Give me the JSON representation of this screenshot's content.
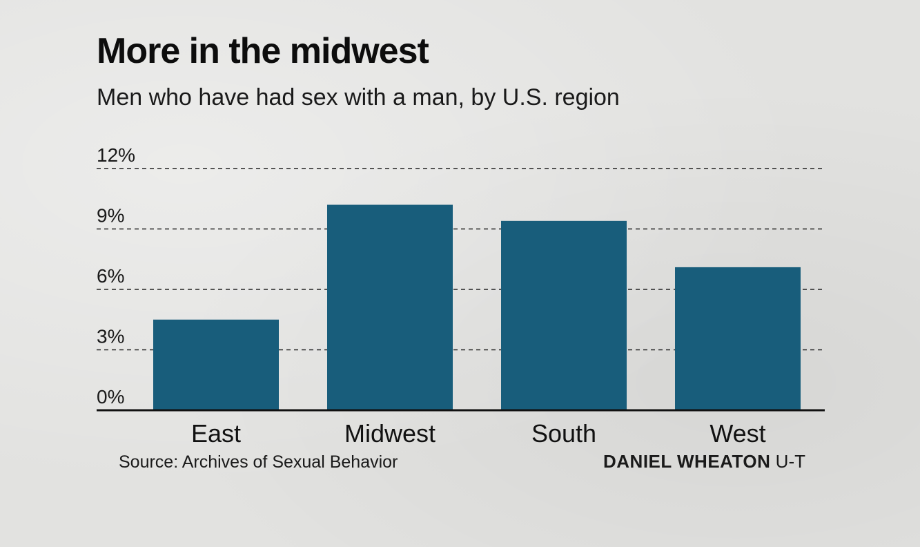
{
  "title": "More in the midwest",
  "subtitle": "Men who have had sex with a man, by U.S. region",
  "source": "Source: Archives of Sexual Behavior",
  "credit": {
    "name": "DANIEL WHEATON",
    "org": "U-T"
  },
  "colors": {
    "bar": "#185d7b",
    "gridline": "#222222",
    "baseline": "#111111",
    "background": "#e2e2e0"
  },
  "chart_data": {
    "type": "bar",
    "title": "More in the midwest",
    "subtitle": "Men who have had sex with a man, by U.S. region",
    "categories": [
      "East",
      "Midwest",
      "South",
      "West"
    ],
    "values": [
      4.5,
      10.2,
      9.4,
      7.1
    ],
    "ylim": [
      0,
      12
    ],
    "yticks": [
      0,
      3,
      6,
      9,
      12
    ],
    "ytick_labels": [
      "0%",
      "3%",
      "6%",
      "9%",
      "12%"
    ],
    "grid": true,
    "legend": "none"
  }
}
